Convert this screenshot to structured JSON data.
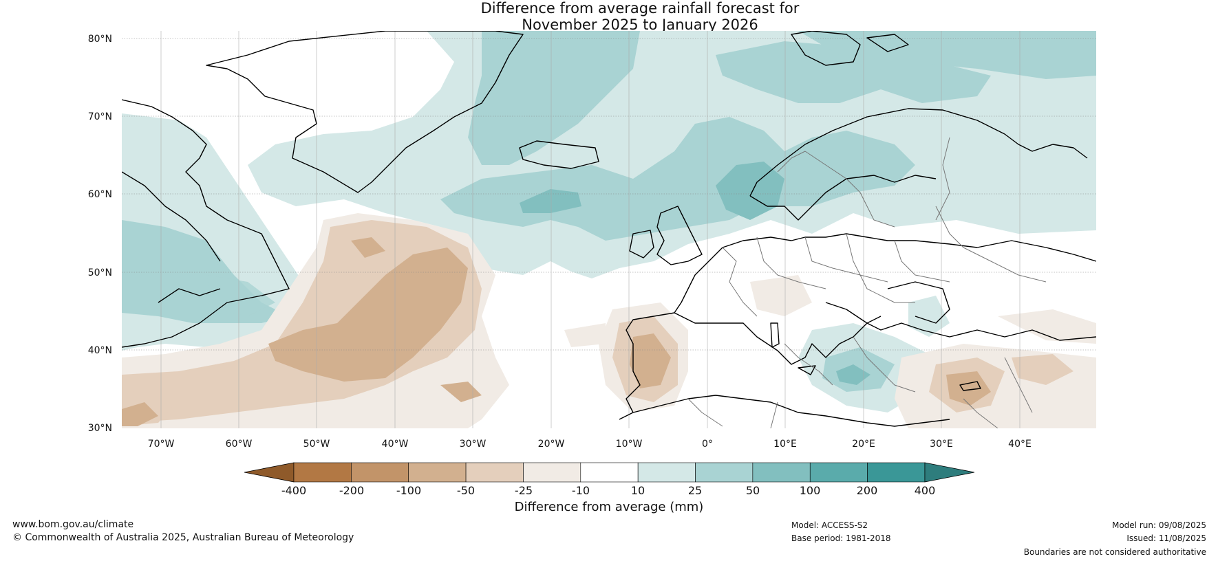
{
  "title": {
    "line1": "Difference from average rainfall forecast for",
    "line2": "November 2025 to January 2026"
  },
  "map": {
    "lat_labels": [
      "80°N",
      "70°N",
      "60°N",
      "50°N",
      "40°N",
      "30°N"
    ],
    "lon_labels": [
      "70°W",
      "60°W",
      "50°W",
      "40°W",
      "30°W",
      "20°W",
      "10°W",
      "0°",
      "10°E",
      "20°E",
      "30°E",
      "40°E"
    ],
    "lat_range": [
      30,
      81
    ],
    "lon_range": [
      -75,
      50
    ]
  },
  "colorbar": {
    "title": "Difference from average (mm)",
    "tick_labels": [
      "-400",
      "-200",
      "-100",
      "-50",
      "-25",
      "-10",
      "10",
      "25",
      "50",
      "100",
      "200",
      "400"
    ],
    "colors": [
      "#8f5a2a",
      "#b27844",
      "#c29469",
      "#d2b08f",
      "#e4cfbc",
      "#f1ebe5",
      "#ffffff",
      "#d4e8e7",
      "#a9d3d3",
      "#82bfbf",
      "#5aabab",
      "#3a9797",
      "#2e7d7d"
    ]
  },
  "footer": {
    "website": "www.bom.gov.au/climate",
    "copyright": "© Commonwealth of Australia 2025, Australian Bureau of Meteorology",
    "model": "Model: ACCESS-S2",
    "base_period": "Base period: 1981-2018",
    "model_run": "Model run: 09/08/2025",
    "issued": "Issued: 11/08/2025",
    "disclaimer": "Boundaries are not considered authoritative"
  }
}
